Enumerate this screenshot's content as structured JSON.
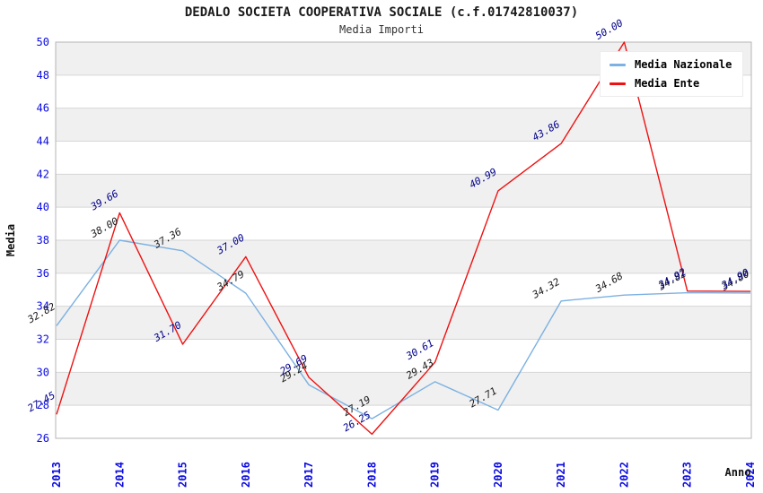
{
  "chart_data": {
    "type": "line",
    "title": "DEDALO SOCIETA COOPERATIVA SOCIALE (c.f.01742810037)",
    "subtitle": "Media Importi",
    "xlabel": "Anno",
    "ylabel": "Media",
    "categories": [
      "2013",
      "2014",
      "2015",
      "2016",
      "2017",
      "2018",
      "2019",
      "2020",
      "2021",
      "2022",
      "2023",
      "2024"
    ],
    "series": [
      {
        "name": "Media Nazionale",
        "color": "#7cb1e2",
        "label_color": "#1a1a1a",
        "values": [
          32.82,
          38.0,
          37.36,
          34.79,
          29.24,
          27.19,
          29.43,
          27.71,
          34.32,
          34.68,
          34.82,
          34.8
        ]
      },
      {
        "name": "Media Ente",
        "color": "#ee1111",
        "label_color": "#00008b",
        "values": [
          27.45,
          39.66,
          31.7,
          37.0,
          29.69,
          26.25,
          30.61,
          40.99,
          43.86,
          50.0,
          34.92,
          34.9
        ]
      }
    ],
    "ylim": [
      26,
      50
    ],
    "ytick_step": 2,
    "legend_position": "top-right",
    "grid": "horizontal-bands",
    "band_color": "#f0f0f0",
    "gridline_color": "#d6d6d6",
    "border_color": "#b5b5b5",
    "tick_color": "#0b0be0",
    "label_decimals": 2
  }
}
